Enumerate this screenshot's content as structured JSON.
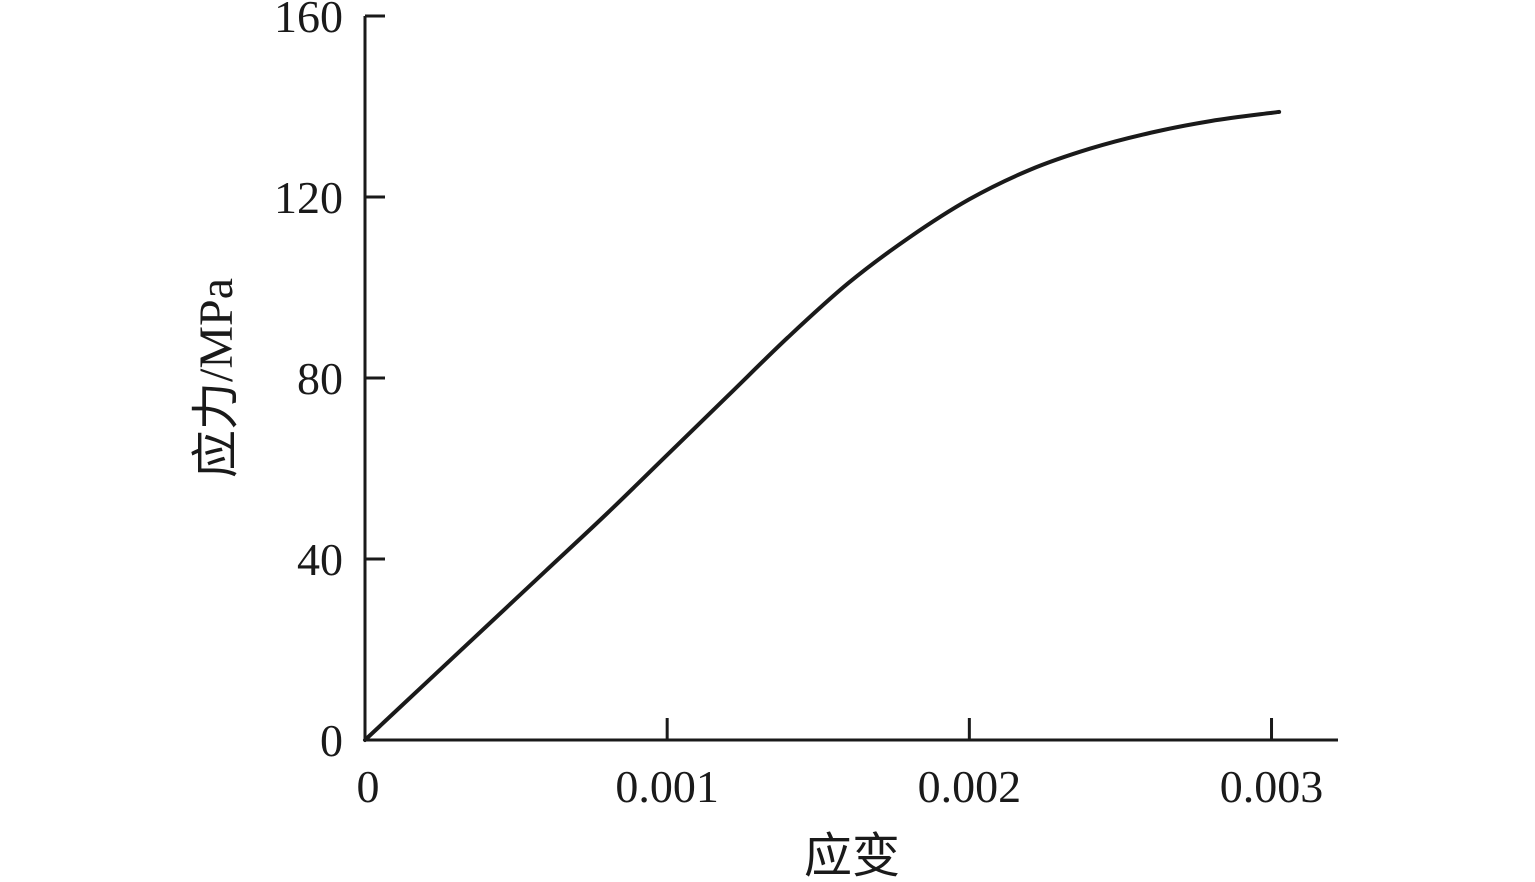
{
  "chart_data": {
    "type": "line",
    "xlabel": "应变",
    "ylabel": "应力/MPa",
    "xlim": [
      0,
      0.00322
    ],
    "ylim": [
      0,
      160
    ],
    "xticks": [
      0,
      0.001,
      0.002,
      0.003
    ],
    "xtick_labels": [
      "0",
      "0.001",
      "0.002",
      "0.003"
    ],
    "yticks": [
      0,
      40,
      80,
      120,
      160
    ],
    "ytick_labels": [
      "0",
      "40",
      "80",
      "120",
      "160"
    ],
    "grid": false,
    "legend": false,
    "series": [
      {
        "color": "#1a1a1a",
        "x": [
          0,
          0.0002,
          0.0004,
          0.0006,
          0.0008,
          0.001,
          0.0012,
          0.0014,
          0.0016,
          0.0018,
          0.002,
          0.0022,
          0.0024,
          0.0026,
          0.0028,
          0.003,
          0.003025
        ],
        "y": [
          0,
          12.5,
          25,
          37.5,
          50,
          63,
          76,
          89,
          101,
          111,
          119.5,
          126,
          130.7,
          134.2,
          136.8,
          138.6,
          138.8
        ]
      }
    ]
  }
}
